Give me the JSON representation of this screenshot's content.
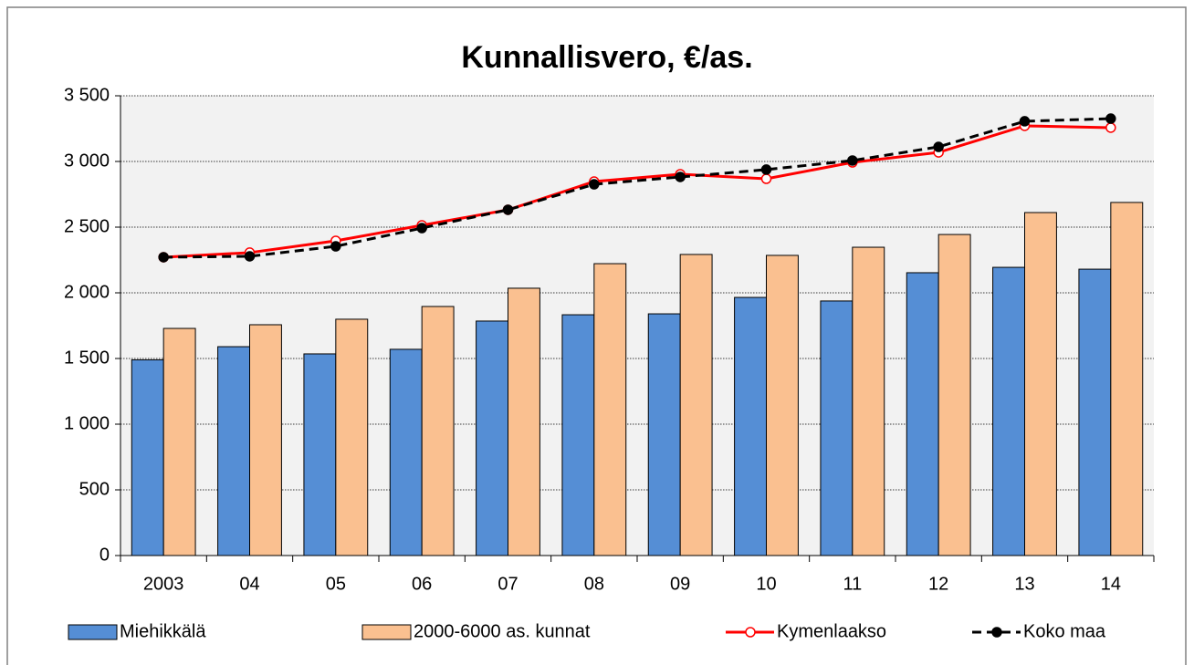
{
  "chart_data": {
    "type": "bar",
    "title": "Kunnallisvero, €/as.",
    "categories": [
      "2003",
      "04",
      "05",
      "06",
      "07",
      "08",
      "09",
      "10",
      "11",
      "12",
      "13",
      "14"
    ],
    "series": [
      {
        "name": "Miehikkälä",
        "type": "bar",
        "color": "#558ed5",
        "values": [
          1490,
          1590,
          1535,
          1570,
          1785,
          1833,
          1840,
          1965,
          1938,
          2153,
          2194,
          2180
        ]
      },
      {
        "name": "2000-6000 as. kunnat",
        "type": "bar",
        "color": "#fac090",
        "values": [
          1729,
          1757,
          1799,
          1896,
          2035,
          2222,
          2292,
          2285,
          2347,
          2444,
          2611,
          2688
        ]
      },
      {
        "name": "Kymenlaakso",
        "type": "line",
        "color": "#ff0000",
        "values": [
          2271,
          2306,
          2396,
          2514,
          2632,
          2847,
          2903,
          2868,
          2993,
          3069,
          3271,
          3257
        ]
      },
      {
        "name": "Koko maa",
        "type": "line",
        "color": "#000000",
        "dashed": true,
        "values": [
          2271,
          2278,
          2354,
          2493,
          2632,
          2826,
          2882,
          2938,
          3007,
          3111,
          3306,
          3326
        ]
      }
    ],
    "ylim": [
      0,
      3500
    ],
    "yticks": [
      0,
      500,
      {
        "value": 1000,
        "label": "1 000"
      },
      {
        "value": 1500,
        "label": "1 500"
      },
      {
        "value": 2000,
        "label": "2 000"
      },
      {
        "value": 2500,
        "label": "2 500"
      },
      {
        "value": 3000,
        "label": "3 000"
      },
      {
        "value": 3500,
        "label": "3 500"
      }
    ],
    "grid": true,
    "legend": "bottom"
  }
}
